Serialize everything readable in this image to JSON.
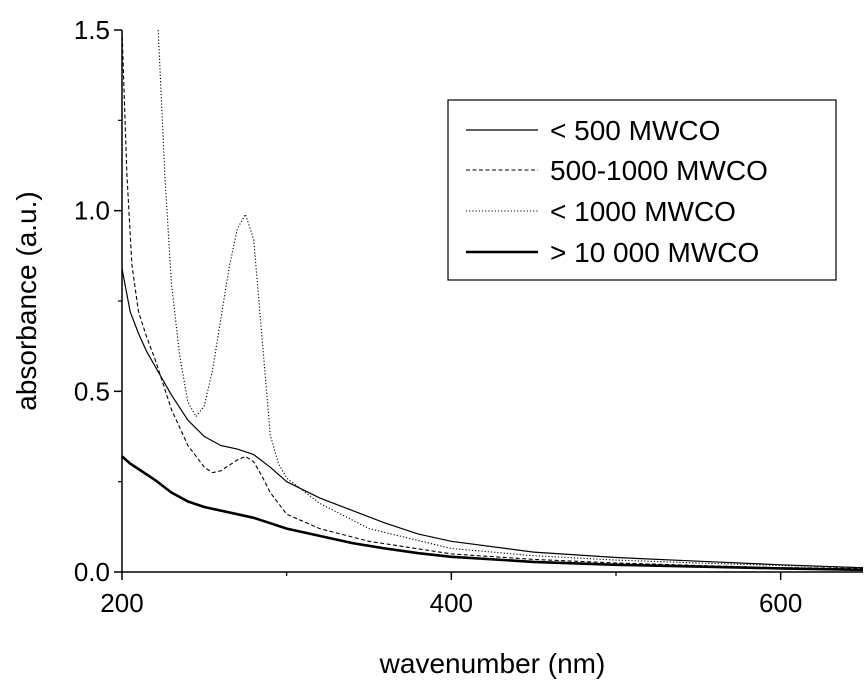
{
  "chart_data": {
    "type": "line",
    "title": "",
    "xlabel": "wavenumber (nm)",
    "ylabel": "absorbance (a.u.)",
    "xlim": [
      200,
      650
    ],
    "ylim": [
      0,
      1.5
    ],
    "x_ticks": [
      200,
      400,
      600
    ],
    "x_tick_labels": [
      "200",
      "400",
      "600"
    ],
    "y_ticks": [
      0,
      0.5,
      1.0,
      1.5
    ],
    "y_tick_labels": [
      "0.0",
      "0.5",
      "1.0",
      "1.5"
    ],
    "legend_position": "top-right",
    "grid": false,
    "series": [
      {
        "name": "< 500 MWCO",
        "style": "solid-thin",
        "x": [
          200,
          205,
          210,
          215,
          220,
          225,
          230,
          240,
          250,
          260,
          270,
          280,
          290,
          300,
          320,
          340,
          360,
          380,
          400,
          450,
          500,
          550,
          600,
          650
        ],
        "y": [
          0.84,
          0.72,
          0.66,
          0.61,
          0.57,
          0.53,
          0.49,
          0.42,
          0.375,
          0.35,
          0.34,
          0.325,
          0.29,
          0.25,
          0.205,
          0.17,
          0.135,
          0.105,
          0.085,
          0.055,
          0.04,
          0.03,
          0.02,
          0.012
        ]
      },
      {
        "name": "500-1000 MWCO",
        "style": "dashed",
        "x": [
          200,
          203,
          206,
          210,
          215,
          220,
          225,
          230,
          240,
          250,
          255,
          260,
          265,
          270,
          275,
          280,
          285,
          290,
          300,
          320,
          350,
          400,
          450,
          500,
          550,
          600,
          650
        ],
        "y": [
          1.5,
          1.1,
          0.85,
          0.72,
          0.65,
          0.59,
          0.52,
          0.45,
          0.35,
          0.29,
          0.275,
          0.28,
          0.295,
          0.31,
          0.32,
          0.305,
          0.265,
          0.22,
          0.16,
          0.12,
          0.085,
          0.05,
          0.035,
          0.025,
          0.018,
          0.012,
          0.01
        ]
      },
      {
        "name": "< 1000 MWCO",
        "style": "dotted",
        "x": [
          222,
          226,
          230,
          235,
          240,
          245,
          250,
          255,
          260,
          265,
          270,
          275,
          280,
          285,
          290,
          295,
          300,
          320,
          350,
          400,
          450,
          500,
          550,
          600,
          650
        ],
        "y": [
          1.5,
          1.1,
          0.8,
          0.6,
          0.47,
          0.43,
          0.46,
          0.56,
          0.7,
          0.84,
          0.95,
          0.99,
          0.92,
          0.65,
          0.38,
          0.3,
          0.26,
          0.19,
          0.12,
          0.065,
          0.045,
          0.033,
          0.025,
          0.018,
          0.012
        ]
      },
      {
        "name": "> 10 000 MWCO",
        "style": "solid-thick",
        "x": [
          200,
          205,
          210,
          220,
          230,
          240,
          250,
          260,
          270,
          280,
          290,
          300,
          320,
          340,
          360,
          380,
          400,
          450,
          500,
          550,
          600,
          650
        ],
        "y": [
          0.32,
          0.3,
          0.285,
          0.255,
          0.22,
          0.195,
          0.18,
          0.17,
          0.16,
          0.15,
          0.135,
          0.12,
          0.1,
          0.08,
          0.065,
          0.052,
          0.042,
          0.028,
          0.02,
          0.015,
          0.01,
          0.006
        ]
      }
    ]
  }
}
